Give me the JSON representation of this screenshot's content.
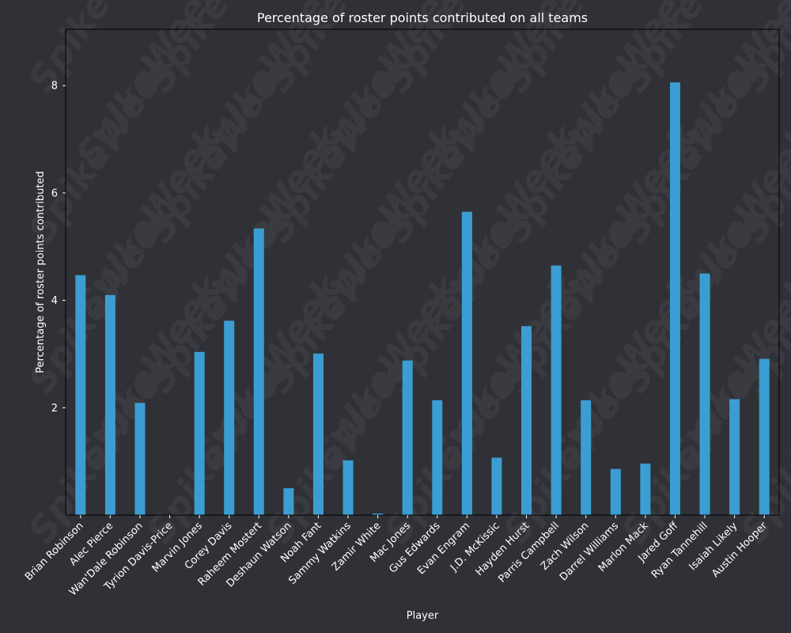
{
  "chart_data": {
    "type": "bar",
    "title": "Percentage of roster points contributed on all teams",
    "xlabel": "Player",
    "ylabel": "Percentage of roster points contributed",
    "ylim": [
      0,
      9.05
    ],
    "yticks": [
      2,
      4,
      6,
      8
    ],
    "grid": false,
    "bar_color": "#3b9ed3",
    "categories": [
      "Brian Robinson",
      "Alec Pierce",
      "Wan'Dale Robinson",
      "Tyrion Davis-Price",
      "Marvin Jones",
      "Corey Davis",
      "Raheem Mostert",
      "Deshaun Watson",
      "Noah Fant",
      "Sammy Watkins",
      "Zamir White",
      "Mac Jones",
      "Gus Edwards",
      "Evan Engram",
      "J.D. McKissic",
      "Hayden Hurst",
      "Parris Campbell",
      "Zach Wilson",
      "Darrel Williams",
      "Marlon Mack",
      "Jared Goff",
      "Ryan Tannehill",
      "Isaiah Likely",
      "Austin Hooper"
    ],
    "values": [
      4.47,
      4.1,
      2.09,
      0.0,
      3.04,
      3.62,
      5.34,
      0.5,
      3.01,
      1.02,
      0.03,
      2.88,
      2.14,
      5.65,
      1.07,
      3.52,
      4.65,
      2.14,
      0.86,
      0.96,
      8.06,
      4.5,
      2.16,
      2.91
    ]
  },
  "watermark": {
    "text": "SpikeWeek"
  },
  "colors": {
    "background": "#303136",
    "axes": "#000000",
    "text": "#ffffff"
  }
}
